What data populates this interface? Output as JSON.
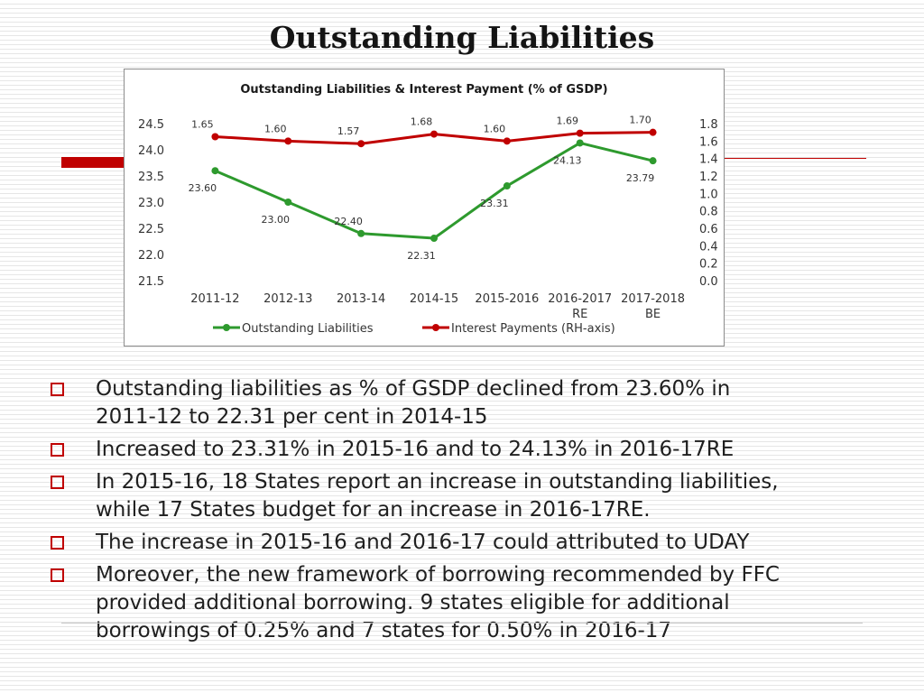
{
  "slide": {
    "title": "Outstanding Liabilities"
  },
  "chart_data": {
    "type": "line",
    "title": "Outstanding Liabilities & Interest Payment (% of GSDP)",
    "categories": [
      [
        "2011-12"
      ],
      [
        "2012-13"
      ],
      [
        "2013-14"
      ],
      [
        "2014-15"
      ],
      [
        "2015-2016"
      ],
      [
        "2016-2017",
        "RE"
      ],
      [
        "2017-2018",
        "BE"
      ]
    ],
    "y_left": {
      "min": 21.5,
      "max": 24.5,
      "step": 0.5,
      "ticks": [
        "21.5",
        "22.0",
        "22.5",
        "23.0",
        "23.5",
        "24.0",
        "24.5"
      ]
    },
    "y_right": {
      "min": 0.0,
      "max": 1.8,
      "step": 0.2,
      "ticks": [
        "0.0",
        "0.2",
        "0.4",
        "0.6",
        "0.8",
        "1.0",
        "1.2",
        "1.4",
        "1.6",
        "1.8"
      ]
    },
    "series": [
      {
        "name": "Outstanding Liabilities",
        "axis": "left",
        "color": "#2e9a2e",
        "values": [
          23.6,
          23.0,
          22.4,
          22.31,
          23.31,
          24.13,
          23.79
        ],
        "labels": [
          "23.60",
          "23.00",
          "22.40",
          "22.31",
          "23.31",
          "24.13",
          "23.79"
        ],
        "label_pos": [
          "below",
          "below",
          "above",
          "below",
          "below",
          "below",
          "below"
        ]
      },
      {
        "name": "Interest Payments (RH-axis)",
        "axis": "right",
        "color": "#c00000",
        "values": [
          1.65,
          1.6,
          1.57,
          1.68,
          1.6,
          1.69,
          1.7
        ],
        "labels": [
          "1.65",
          "1.60",
          "1.57",
          "1.68",
          "1.60",
          "1.69",
          "1.70"
        ],
        "label_pos": [
          "above",
          "above",
          "above",
          "above",
          "above",
          "above",
          "above"
        ]
      }
    ],
    "legend_position": "bottom"
  },
  "bullets": [
    {
      "lines": [
        "Outstanding liabilities as % of GSDP declined from 23.60% in",
        "2011-12 to 22.31 per cent in 2014-15"
      ]
    },
    {
      "lines": [
        "Increased to 23.31% in 2015-16 and to 24.13% in 2016-17RE"
      ]
    },
    {
      "lines": [
        "In 2015-16, 18 States report an increase in outstanding liabilities,",
        "while 17 States budget for an increase in 2016-17RE."
      ]
    },
    {
      "lines": [
        "The increase in 2015-16 and 2016-17 could attributed to UDAY"
      ]
    },
    {
      "lines": [
        "Moreover, the new framework of borrowing recommended by FFC",
        "provided additional borrowing. 9 states eligible for additional",
        "borrowings of 0.25% and 7 states for 0.50% in 2016-17"
      ]
    }
  ],
  "colors": {
    "accent": "#c00000",
    "green": "#2e9a2e"
  }
}
